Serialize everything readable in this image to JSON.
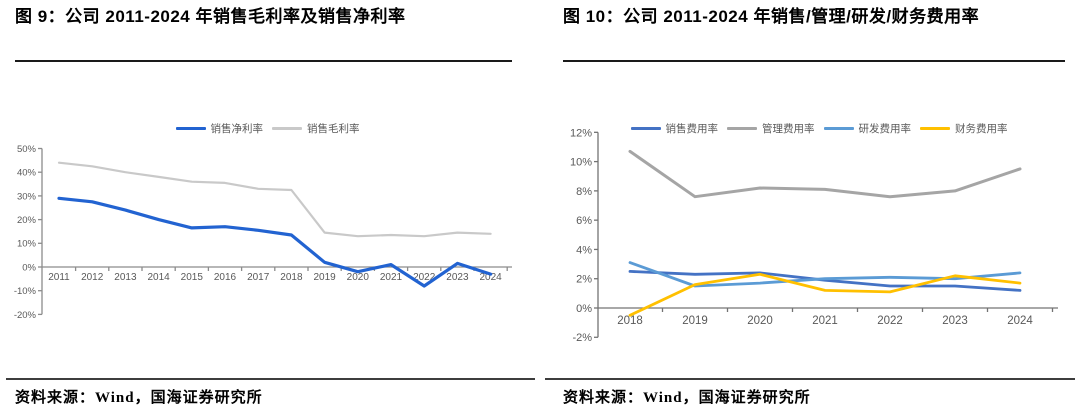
{
  "figures": [
    {
      "title": "图 9：公司 2011-2024 年销售毛利率及销售净利率",
      "source": "资料来源：Wind，国海证券研究所"
    },
    {
      "title": "图 10：公司 2011-2024 年销售/管理/研发/财务费用率",
      "source": "资料来源：Wind，国海证券研究所"
    }
  ],
  "colors": {
    "net_margin_blue": "#2263d1",
    "gross_margin_gray": "#c9c9c9",
    "sales_expense_blue": "#4472c4",
    "admin_expense_gray": "#a5a5a5",
    "rd_expense_lightblue": "#5b9bd5",
    "finance_expense_yellow": "#ffc000",
    "axis_gray": "#8c8c8c",
    "tick_text_gray": "#595959"
  },
  "chart_data": [
    {
      "type": "line",
      "title": "图 9：公司 2011-2024 年销售毛利率及销售净利率",
      "categories": [
        "2011",
        "2012",
        "2013",
        "2014",
        "2015",
        "2016",
        "2017",
        "2018",
        "2019",
        "2020",
        "2021",
        "2022",
        "2023",
        "2024"
      ],
      "series": [
        {
          "name": "销售净利率",
          "color": "#2263d1",
          "values": [
            29,
            27.5,
            24,
            20,
            16.5,
            17,
            15.5,
            13.5,
            2,
            -2,
            1,
            -8,
            1.5,
            -3
          ]
        },
        {
          "name": "销售毛利率",
          "color": "#c9c9c9",
          "values": [
            44,
            42.5,
            40,
            38,
            36,
            35.5,
            33,
            32.5,
            14.5,
            13,
            13.5,
            13,
            14.5,
            14
          ]
        }
      ],
      "xlabel": "",
      "ylabel": "",
      "ylim": [
        -20,
        50
      ],
      "ytick_step": 10,
      "ytick_format": "percent",
      "grid": false,
      "legend_position": "top"
    },
    {
      "type": "line",
      "title": "图 10：公司 2011-2024 年销售/管理/研发/财务费用率",
      "categories": [
        "2018",
        "2019",
        "2020",
        "2021",
        "2022",
        "2023",
        "2024"
      ],
      "series": [
        {
          "name": "销售费用率",
          "color": "#4472c4",
          "values": [
            2.5,
            2.3,
            2.4,
            1.9,
            1.5,
            1.5,
            1.2
          ]
        },
        {
          "name": "管理费用率",
          "color": "#a5a5a5",
          "values": [
            10.7,
            7.6,
            8.2,
            8.1,
            7.6,
            8.0,
            9.5
          ]
        },
        {
          "name": "研发费用率",
          "color": "#5b9bd5",
          "values": [
            3.1,
            1.5,
            1.7,
            2.0,
            2.1,
            2.0,
            2.4
          ]
        },
        {
          "name": "财务费用率",
          "color": "#ffc000",
          "values": [
            -0.5,
            1.6,
            2.3,
            1.2,
            1.1,
            2.2,
            1.7
          ]
        }
      ],
      "xlabel": "",
      "ylabel": "",
      "ylim": [
        -2,
        12
      ],
      "ytick_step": 2,
      "ytick_format": "percent",
      "grid": false,
      "legend_position": "top"
    }
  ]
}
